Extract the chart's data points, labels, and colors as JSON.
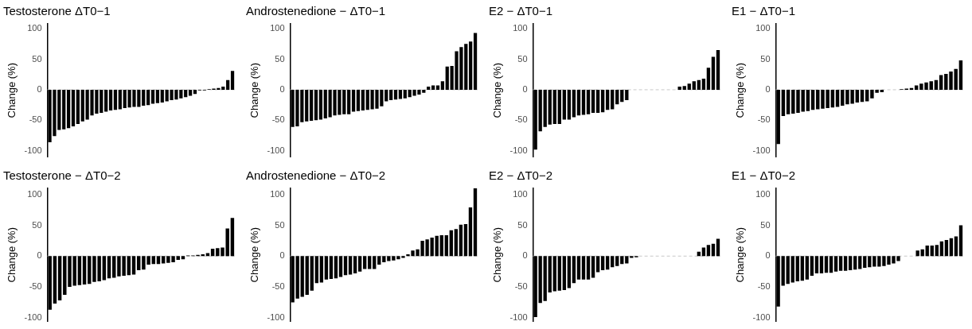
{
  "chart_data": [
    {
      "type": "bar",
      "title": "Testosterone ΔT0−1",
      "ylabel": "Change (%)",
      "color": "#000000",
      "tick_labels": "y",
      "grid": false,
      "legend": false,
      "ylim": [
        -110,
        108
      ],
      "yticks": [
        -100,
        -50,
        0,
        50,
        100
      ],
      "ref_lines": [
        {
          "axis": "y",
          "value": 0,
          "color": "#c8c8c8",
          "line_style": "dashed"
        }
      ],
      "categories": [
        null,
        null,
        null,
        null,
        null,
        null,
        null,
        null,
        null,
        null,
        null,
        null,
        null,
        null,
        null,
        null,
        null,
        null,
        null,
        null,
        null,
        null,
        null,
        null,
        null,
        null,
        null,
        null,
        null,
        null,
        null,
        null,
        null,
        null,
        null,
        null,
        null,
        null,
        null,
        null
      ],
      "values": [
        -86,
        -76,
        -66,
        -65,
        -63,
        -60,
        -56,
        -52,
        -49,
        -42,
        -39,
        -38,
        -36,
        -34,
        -33,
        -32,
        -30,
        -29,
        -28,
        -28,
        -26,
        -25,
        -23,
        -22,
        -21,
        -19,
        -17,
        -16,
        -14,
        -12,
        -10,
        -7,
        -1,
        -1,
        1,
        2,
        3,
        5,
        16,
        31
      ]
    },
    {
      "type": "bar",
      "title": "Androstenedione − ΔT0−1",
      "ylabel": "Change (%)",
      "color": "#000000",
      "tick_labels": "y",
      "grid": false,
      "legend": false,
      "ylim": [
        -110,
        108
      ],
      "yticks": [
        -100,
        -50,
        0,
        50,
        100
      ],
      "ref_lines": [
        {
          "axis": "y",
          "value": 0,
          "color": "#c8c8c8",
          "line_style": "dashed"
        }
      ],
      "categories": [
        null,
        null,
        null,
        null,
        null,
        null,
        null,
        null,
        null,
        null,
        null,
        null,
        null,
        null,
        null,
        null,
        null,
        null,
        null,
        null,
        null,
        null,
        null,
        null,
        null,
        null,
        null,
        null,
        null,
        null,
        null,
        null,
        null,
        null,
        null,
        null,
        null,
        null,
        null,
        null
      ],
      "values": [
        -61,
        -60,
        -53,
        -52,
        -51,
        -50,
        -49,
        -47,
        -45,
        -42,
        -41,
        -40,
        -40,
        -36,
        -35,
        -34,
        -33,
        -32,
        -31,
        -27,
        -19,
        -17,
        -16,
        -15,
        -14,
        -12,
        -10,
        -8,
        -5,
        5,
        7,
        7,
        14,
        38,
        39,
        63,
        70,
        75,
        79,
        93
      ]
    },
    {
      "type": "bar",
      "title": "E2 − ΔT0−1",
      "ylabel": "Change (%)",
      "color": "#000000",
      "tick_labels": "y",
      "grid": false,
      "legend": false,
      "ylim": [
        -110,
        108
      ],
      "yticks": [
        -100,
        -50,
        0,
        50,
        100
      ],
      "ref_lines": [
        {
          "axis": "y",
          "value": 0,
          "color": "#c8c8c8",
          "line_style": "dashed"
        }
      ],
      "categories": [
        null,
        null,
        null,
        null,
        null,
        null,
        null,
        null,
        null,
        null,
        null,
        null,
        null,
        null,
        null,
        null,
        null,
        null,
        null,
        null,
        null,
        null,
        null,
        null,
        null,
        null,
        null,
        null,
        null,
        null,
        null,
        null,
        null,
        null,
        null,
        null,
        null,
        null,
        null
      ],
      "values": [
        -98,
        -68,
        -61,
        -57,
        -56,
        -56,
        -49,
        -49,
        -45,
        -42,
        -41,
        -40,
        -38,
        -38,
        -37,
        -33,
        -32,
        -24,
        -20,
        -17,
        0,
        0,
        0,
        0,
        0,
        0,
        0,
        0,
        0,
        0,
        5,
        6,
        10,
        14,
        16,
        18,
        36,
        54,
        65
      ]
    },
    {
      "type": "bar",
      "title": "E1 − ΔT0−1",
      "ylabel": "Change (%)",
      "color": "#000000",
      "tick_labels": "y",
      "grid": false,
      "legend": false,
      "ylim": [
        -110,
        108
      ],
      "yticks": [
        -100,
        -50,
        0,
        50,
        100
      ],
      "ref_lines": [
        {
          "axis": "y",
          "value": 0,
          "color": "#c8c8c8",
          "line_style": "dashed"
        }
      ],
      "categories": [
        null,
        null,
        null,
        null,
        null,
        null,
        null,
        null,
        null,
        null,
        null,
        null,
        null,
        null,
        null,
        null,
        null,
        null,
        null,
        null,
        null,
        null,
        null,
        null,
        null,
        null,
        null,
        null,
        null,
        null,
        null,
        null,
        null,
        null,
        null,
        null,
        null,
        null
      ],
      "values": [
        -89,
        -43,
        -40,
        -39,
        -38,
        -36,
        -35,
        -33,
        -32,
        -31,
        -30,
        -29,
        -28,
        -26,
        -24,
        -23,
        -21,
        -20,
        -19,
        -14,
        -5,
        -4,
        0,
        0,
        0,
        1,
        2,
        3,
        7,
        10,
        12,
        14,
        16,
        24,
        26,
        30,
        34,
        48
      ]
    },
    {
      "type": "bar",
      "title": "Testosterone − ΔT0−2",
      "ylabel": "Change (%)",
      "color": "#000000",
      "tick_labels": "y",
      "grid": false,
      "legend": false,
      "ylim": [
        -106,
        110
      ],
      "yticks": [
        -100,
        -50,
        0,
        50,
        100
      ],
      "ref_lines": [
        {
          "axis": "y",
          "value": 0,
          "color": "#c8c8c8",
          "line_style": "dashed"
        }
      ],
      "categories": [
        null,
        null,
        null,
        null,
        null,
        null,
        null,
        null,
        null,
        null,
        null,
        null,
        null,
        null,
        null,
        null,
        null,
        null,
        null,
        null,
        null,
        null,
        null,
        null,
        null,
        null,
        null,
        null,
        null,
        null,
        null,
        null,
        null,
        null,
        null,
        null,
        null,
        null
      ],
      "values": [
        -87,
        -77,
        -72,
        -63,
        -50,
        -48,
        -47,
        -46,
        -45,
        -42,
        -41,
        -39,
        -36,
        -35,
        -33,
        -32,
        -31,
        -30,
        -23,
        -22,
        -14,
        -13,
        -13,
        -12,
        -11,
        -10,
        -6,
        -5,
        1,
        1,
        2,
        3,
        5,
        12,
        13,
        14,
        45,
        62
      ]
    },
    {
      "type": "bar",
      "title": "Androstenedione − ΔT0−2",
      "ylabel": "Change (%)",
      "color": "#000000",
      "tick_labels": "y",
      "grid": false,
      "legend": false,
      "ylim": [
        -106,
        110
      ],
      "yticks": [
        -100,
        -50,
        0,
        50,
        100
      ],
      "ref_lines": [
        {
          "axis": "y",
          "value": 0,
          "color": "#c8c8c8",
          "line_style": "dashed"
        }
      ],
      "categories": [
        null,
        null,
        null,
        null,
        null,
        null,
        null,
        null,
        null,
        null,
        null,
        null,
        null,
        null,
        null,
        null,
        null,
        null,
        null,
        null,
        null,
        null,
        null,
        null,
        null,
        null,
        null,
        null,
        null,
        null,
        null,
        null,
        null,
        null,
        null,
        null,
        null,
        null,
        null
      ],
      "values": [
        -75,
        -69,
        -66,
        -63,
        -56,
        -44,
        -43,
        -38,
        -37,
        -36,
        -34,
        -31,
        -30,
        -28,
        -25,
        -21,
        -21,
        -21,
        -14,
        -10,
        -8,
        -7,
        -5,
        -3,
        3,
        9,
        11,
        25,
        27,
        30,
        33,
        34,
        34,
        42,
        44,
        51,
        52,
        79,
        110
      ]
    },
    {
      "type": "bar",
      "title": "E2 − ΔT0−2",
      "ylabel": "Change (%)",
      "color": "#000000",
      "tick_labels": "y",
      "grid": false,
      "legend": false,
      "ylim": [
        -106,
        110
      ],
      "yticks": [
        -100,
        -50,
        0,
        50,
        100
      ],
      "ref_lines": [
        {
          "axis": "y",
          "value": 0,
          "color": "#c8c8c8",
          "line_style": "dashed"
        }
      ],
      "categories": [
        null,
        null,
        null,
        null,
        null,
        null,
        null,
        null,
        null,
        null,
        null,
        null,
        null,
        null,
        null,
        null,
        null,
        null,
        null,
        null,
        null,
        null,
        null,
        null,
        null,
        null,
        null,
        null,
        null,
        null,
        null,
        null,
        null,
        null,
        null,
        null,
        null,
        null,
        null
      ],
      "values": [
        -99,
        -76,
        -73,
        -59,
        -57,
        -56,
        -55,
        -52,
        -44,
        -38,
        -38,
        -38,
        -35,
        -26,
        -23,
        -22,
        -18,
        -16,
        -13,
        -12,
        -3,
        -2,
        0,
        0,
        0,
        0,
        0,
        0,
        0,
        0,
        0,
        0,
        0,
        0,
        7,
        14,
        18,
        20,
        28
      ]
    },
    {
      "type": "bar",
      "title": "E1 − ΔT0−2",
      "ylabel": "Change (%)",
      "color": "#000000",
      "tick_labels": "y",
      "grid": false,
      "legend": false,
      "ylim": [
        -106,
        110
      ],
      "yticks": [
        -100,
        -50,
        0,
        50,
        100
      ],
      "ref_lines": [
        {
          "axis": "y",
          "value": 0,
          "color": "#c8c8c8",
          "line_style": "dashed"
        }
      ],
      "categories": [
        null,
        null,
        null,
        null,
        null,
        null,
        null,
        null,
        null,
        null,
        null,
        null,
        null,
        null,
        null,
        null,
        null,
        null,
        null,
        null,
        null,
        null,
        null,
        null,
        null,
        null,
        null,
        null,
        null,
        null,
        null,
        null,
        null,
        null,
        null,
        null,
        null,
        null,
        null
      ],
      "values": [
        -82,
        -48,
        -45,
        -43,
        -41,
        -40,
        -38,
        -32,
        -28,
        -28,
        -27,
        -27,
        -25,
        -24,
        -24,
        -23,
        -22,
        -21,
        -19,
        -18,
        -17,
        -17,
        -16,
        -14,
        -12,
        -8,
        0,
        0,
        0,
        9,
        11,
        17,
        17,
        18,
        24,
        26,
        29,
        32,
        50
      ]
    }
  ]
}
